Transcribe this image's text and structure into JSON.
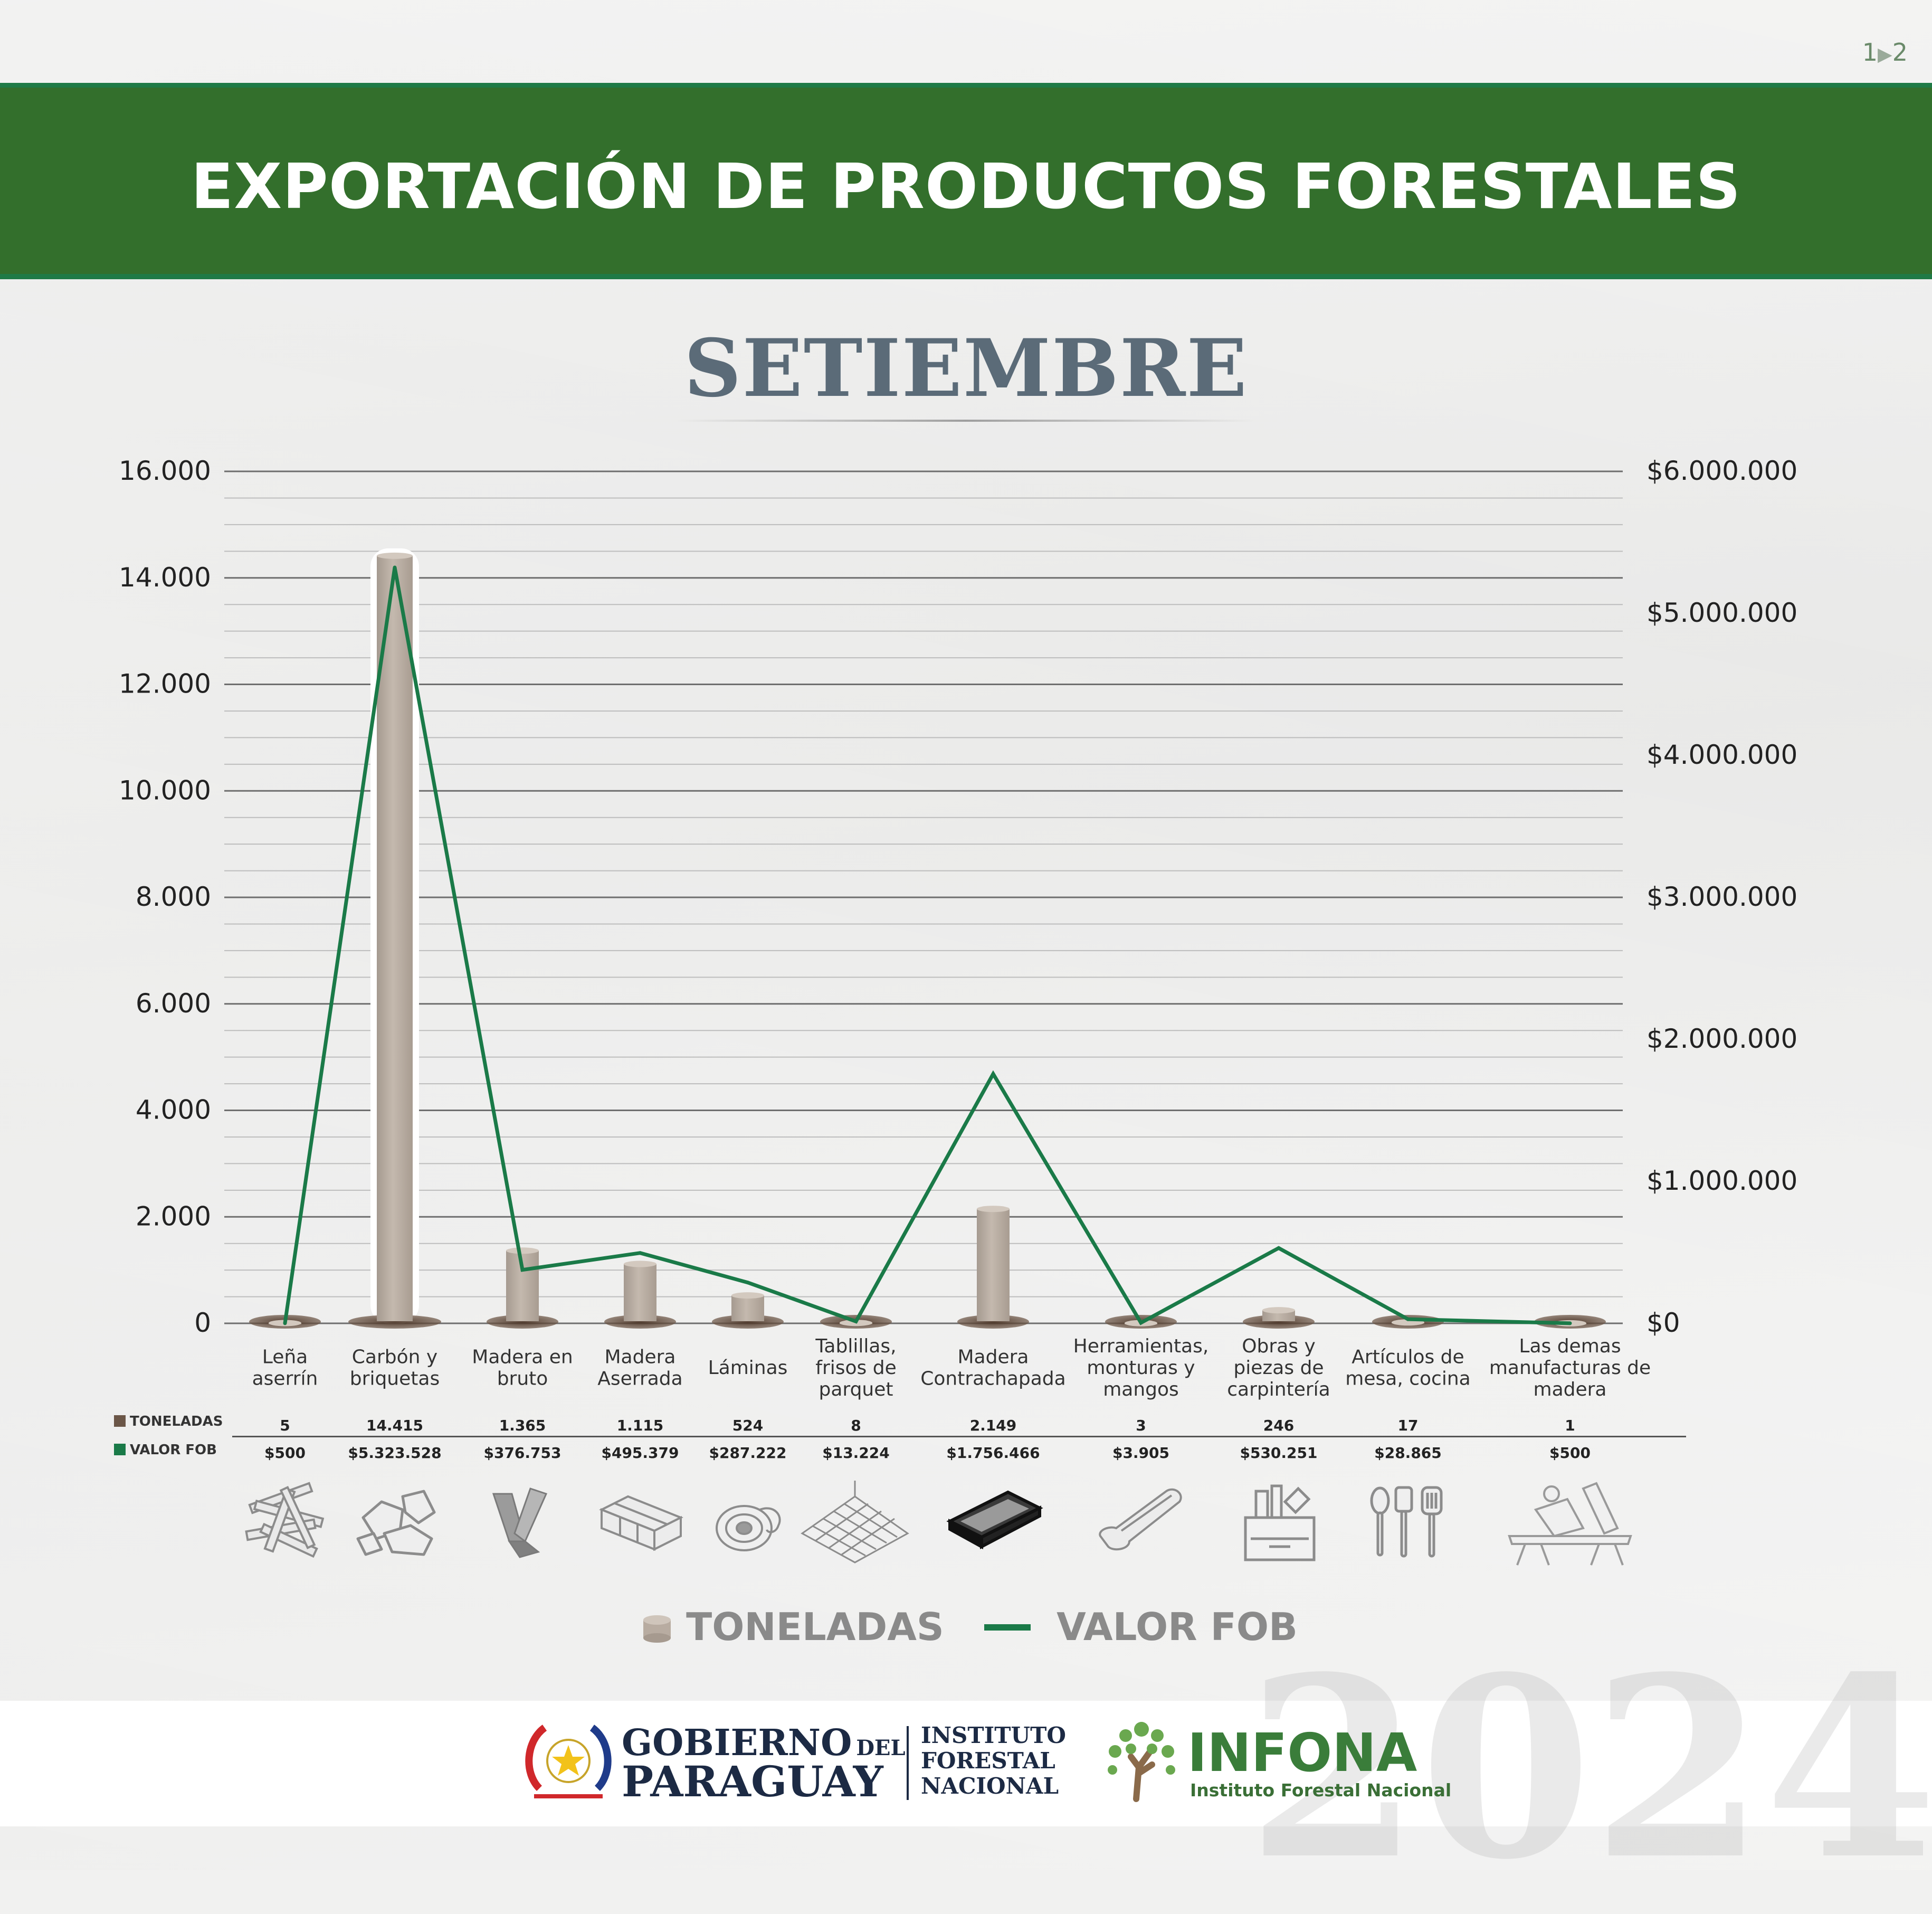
{
  "page_indicator": {
    "current": "1",
    "arrow": "▶",
    "next": "2"
  },
  "header": {
    "title": "EXPORTACIÓN DE PRODUCTOS FORESTALES"
  },
  "month": "SETIEMBRE",
  "chart_data": {
    "type": "bar",
    "secondary_type": "line",
    "categories": [
      [
        "Leña",
        "aserrín"
      ],
      [
        "Carbón y",
        "briquetas"
      ],
      [
        "Madera en",
        "bruto"
      ],
      [
        "Madera",
        "Aserrada"
      ],
      [
        "Láminas"
      ],
      [
        "Tablillas,",
        "frisos de",
        "parquet"
      ],
      [
        "Madera",
        "Contrachapada"
      ],
      [
        "Herramientas,",
        "monturas y",
        "mangos"
      ],
      [
        "Obras y",
        "piezas de",
        "carpintería"
      ],
      [
        "Artículos de",
        "mesa, cocina"
      ],
      [
        "Las demas",
        "manufacturas de",
        "madera"
      ]
    ],
    "series": [
      {
        "name": "TONELADAS",
        "axis": "left",
        "color": "#b8aca1",
        "values": [
          5,
          14415,
          1365,
          1115,
          524,
          8,
          2149,
          3,
          246,
          17,
          1
        ],
        "labels": [
          "5",
          "14.415",
          "1.365",
          "1.115",
          "524",
          "8",
          "2.149",
          "3",
          "246",
          "17",
          "1"
        ]
      },
      {
        "name": "VALOR FOB",
        "axis": "right",
        "color": "#1a7a48",
        "values": [
          500,
          5323528,
          376753,
          495379,
          287222,
          13224,
          1756466,
          3905,
          530251,
          28865,
          500
        ],
        "labels": [
          "$500",
          "$5.323.528",
          "$376.753",
          "$495.379",
          "$287.222",
          "$13.224",
          "$1.756.466",
          "$3.905",
          "$530.251",
          "$28.865",
          "$500"
        ]
      }
    ],
    "y_left": {
      "ticks": [
        0,
        2000,
        4000,
        6000,
        8000,
        10000,
        12000,
        14000,
        16000
      ],
      "tick_labels": [
        "0",
        "2.000",
        "4.000",
        "6.000",
        "8.000",
        "10.000",
        "12.000",
        "14.000",
        "16.000"
      ],
      "ylim": [
        0,
        16000
      ]
    },
    "y_right": {
      "ticks": [
        0,
        1000000,
        2000000,
        3000000,
        4000000,
        5000000,
        6000000
      ],
      "tick_labels": [
        "$0",
        "$1.000.000",
        "$2.000.000",
        "$3.000.000",
        "$4.000.000",
        "$5.000.000",
        "$6.000.000"
      ],
      "ylim": [
        0,
        6000000
      ]
    },
    "grid": true,
    "legend_position": "bottom-center"
  },
  "table": {
    "row_toneladas_label": "TONELADAS",
    "row_valor_label": "VALOR FOB",
    "toneladas_color": "#6b5647",
    "valor_color": "#1a7a48"
  },
  "icons": [
    "firewood-sawdust-icon",
    "charcoal-icon",
    "log-icon",
    "sawn-lumber-icon",
    "veneer-roll-icon",
    "parquet-floor-icon",
    "plywood-icon",
    "tool-handle-icon",
    "carpentry-toolbox-icon",
    "kitchen-utensils-icon",
    "wood-manufactures-icon"
  ],
  "legend": {
    "toneladas": "TONELADAS",
    "valor_fob": "VALOR FOB"
  },
  "footer": {
    "gov_line1": "GOBIERNO",
    "gov_del": "DEL",
    "gov_line2": "PARAGUAY",
    "inst_line1": "INSTITUTO",
    "inst_line2": "FORESTAL",
    "inst_line3": "NACIONAL",
    "infona_name": "INFONA",
    "infona_sub": "Instituto Forestal Nacional",
    "infona_color": "#3a7d3a",
    "year": "2024"
  }
}
